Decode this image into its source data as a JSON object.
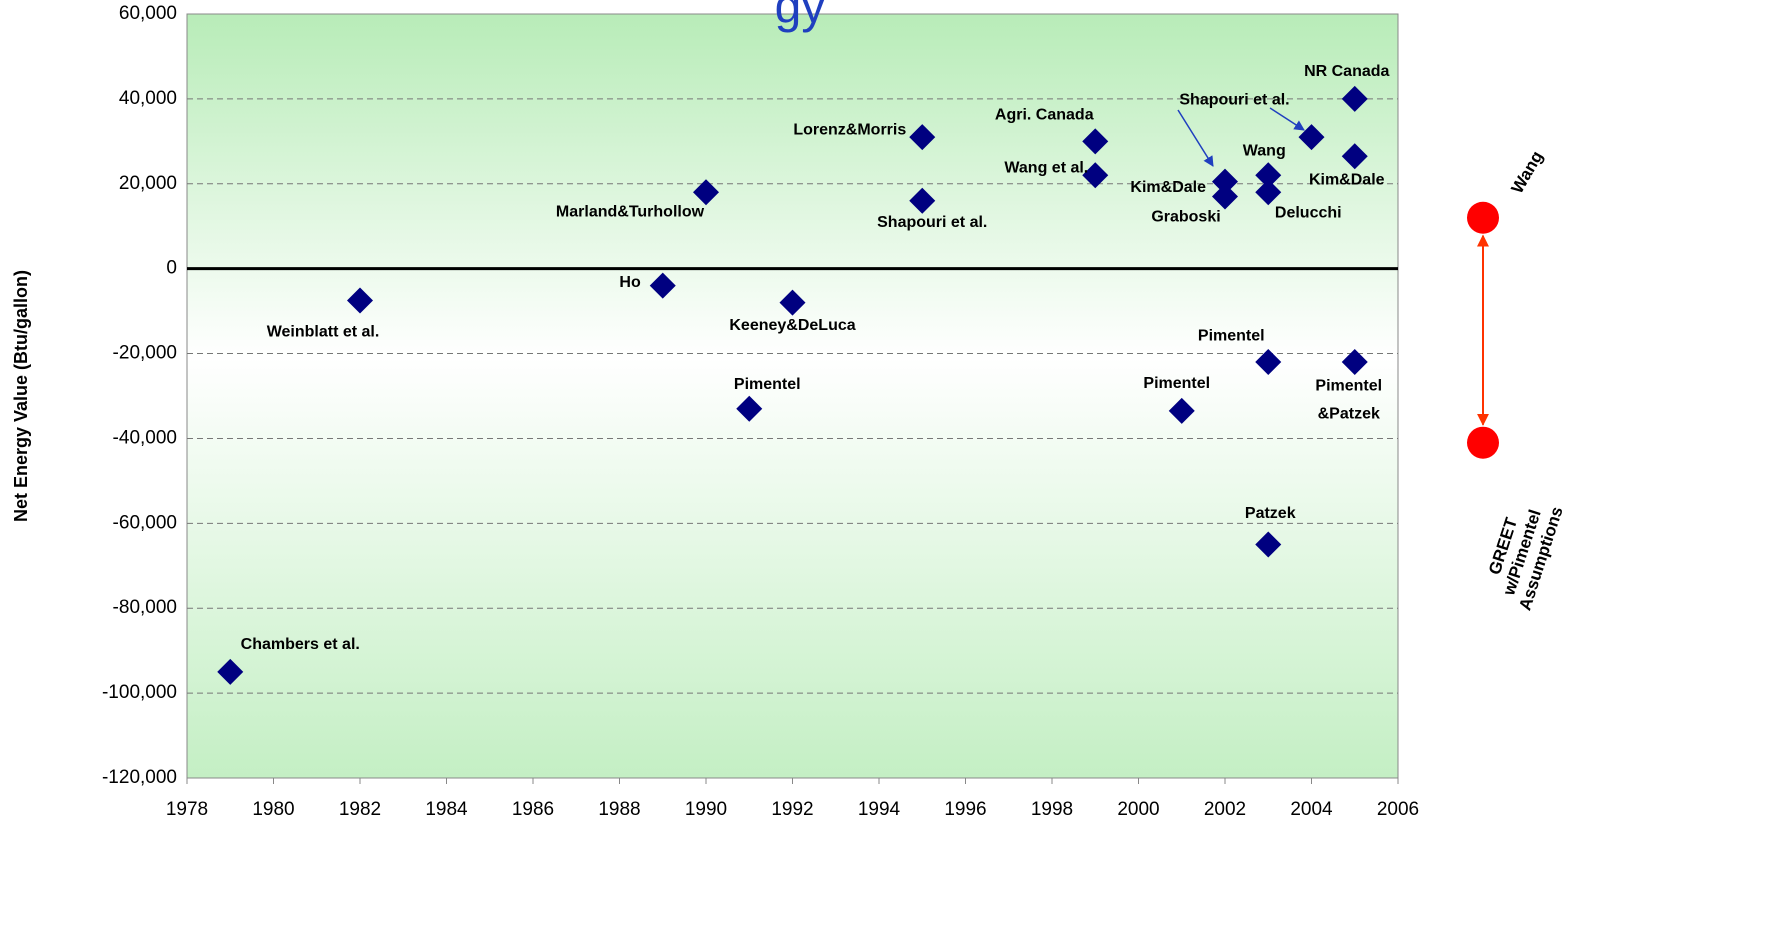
{
  "chart_data": {
    "type": "scatter",
    "title": "gy",
    "y_label": "Net Energy Value (Btu/gallon)",
    "xlim": [
      1978,
      2006
    ],
    "xticks": [
      1978,
      1980,
      1982,
      1984,
      1986,
      1988,
      1990,
      1992,
      1994,
      1996,
      1998,
      2000,
      2002,
      2004,
      2006
    ],
    "ylim": [
      -120000,
      60000
    ],
    "yticks": [
      {
        "value": -120000,
        "label": "-120,000"
      },
      {
        "value": -100000,
        "label": "-100,000"
      },
      {
        "value": -80000,
        "label": "-80,000"
      },
      {
        "value": -60000,
        "label": "-60,000"
      },
      {
        "value": -40000,
        "label": "-40,000"
      },
      {
        "value": -20000,
        "label": "-20,000"
      },
      0,
      {
        "value": 20000,
        "label": "20,000"
      },
      {
        "value": 40000,
        "label": "40,000"
      },
      {
        "value": 60000,
        "label": "60,000"
      }
    ],
    "grid": true,
    "color": "#000080",
    "x": [
      1979,
      1982,
      1990,
      1989,
      1992,
      1991,
      1995,
      1995,
      1999,
      1999,
      2001,
      2002,
      2002,
      2003,
      2003,
      2003,
      2003,
      2004,
      2005,
      2005,
      2005
    ],
    "values": [
      -95000,
      -7500,
      18000,
      -4000,
      -8000,
      -33000,
      31000,
      16000,
      30000,
      22000,
      -33500,
      20500,
      17000,
      22000,
      18000,
      -22000,
      -65000,
      31000,
      40000,
      26500,
      -22000
    ],
    "labels": [
      "Chambers et al.",
      "Weinblatt et al.",
      "Marland&Turhollow",
      "Ho",
      "Keeney&DeLuca",
      "Pimentel",
      "Lorenz&Morris",
      "Shapouri et al.",
      "Agri. Canada",
      "Wang et al.",
      "Pimentel",
      "Kim&Dale",
      "Graboski",
      "Wang",
      "Delucchi",
      "Pimentel",
      "Patzek",
      "Shapouri et al.",
      "NR Canada",
      "Kim&Dale",
      [
        "Pimentel",
        "&Patzek"
      ]
    ],
    "markers_color": "#ff0000",
    "markers": [
      {
        "label": [
          "Wang"
        ],
        "value": 12000
      },
      {
        "label": [
          "GREET",
          "w/Pimentel",
          "Assumptions"
        ],
        "value": -41000
      }
    ]
  }
}
